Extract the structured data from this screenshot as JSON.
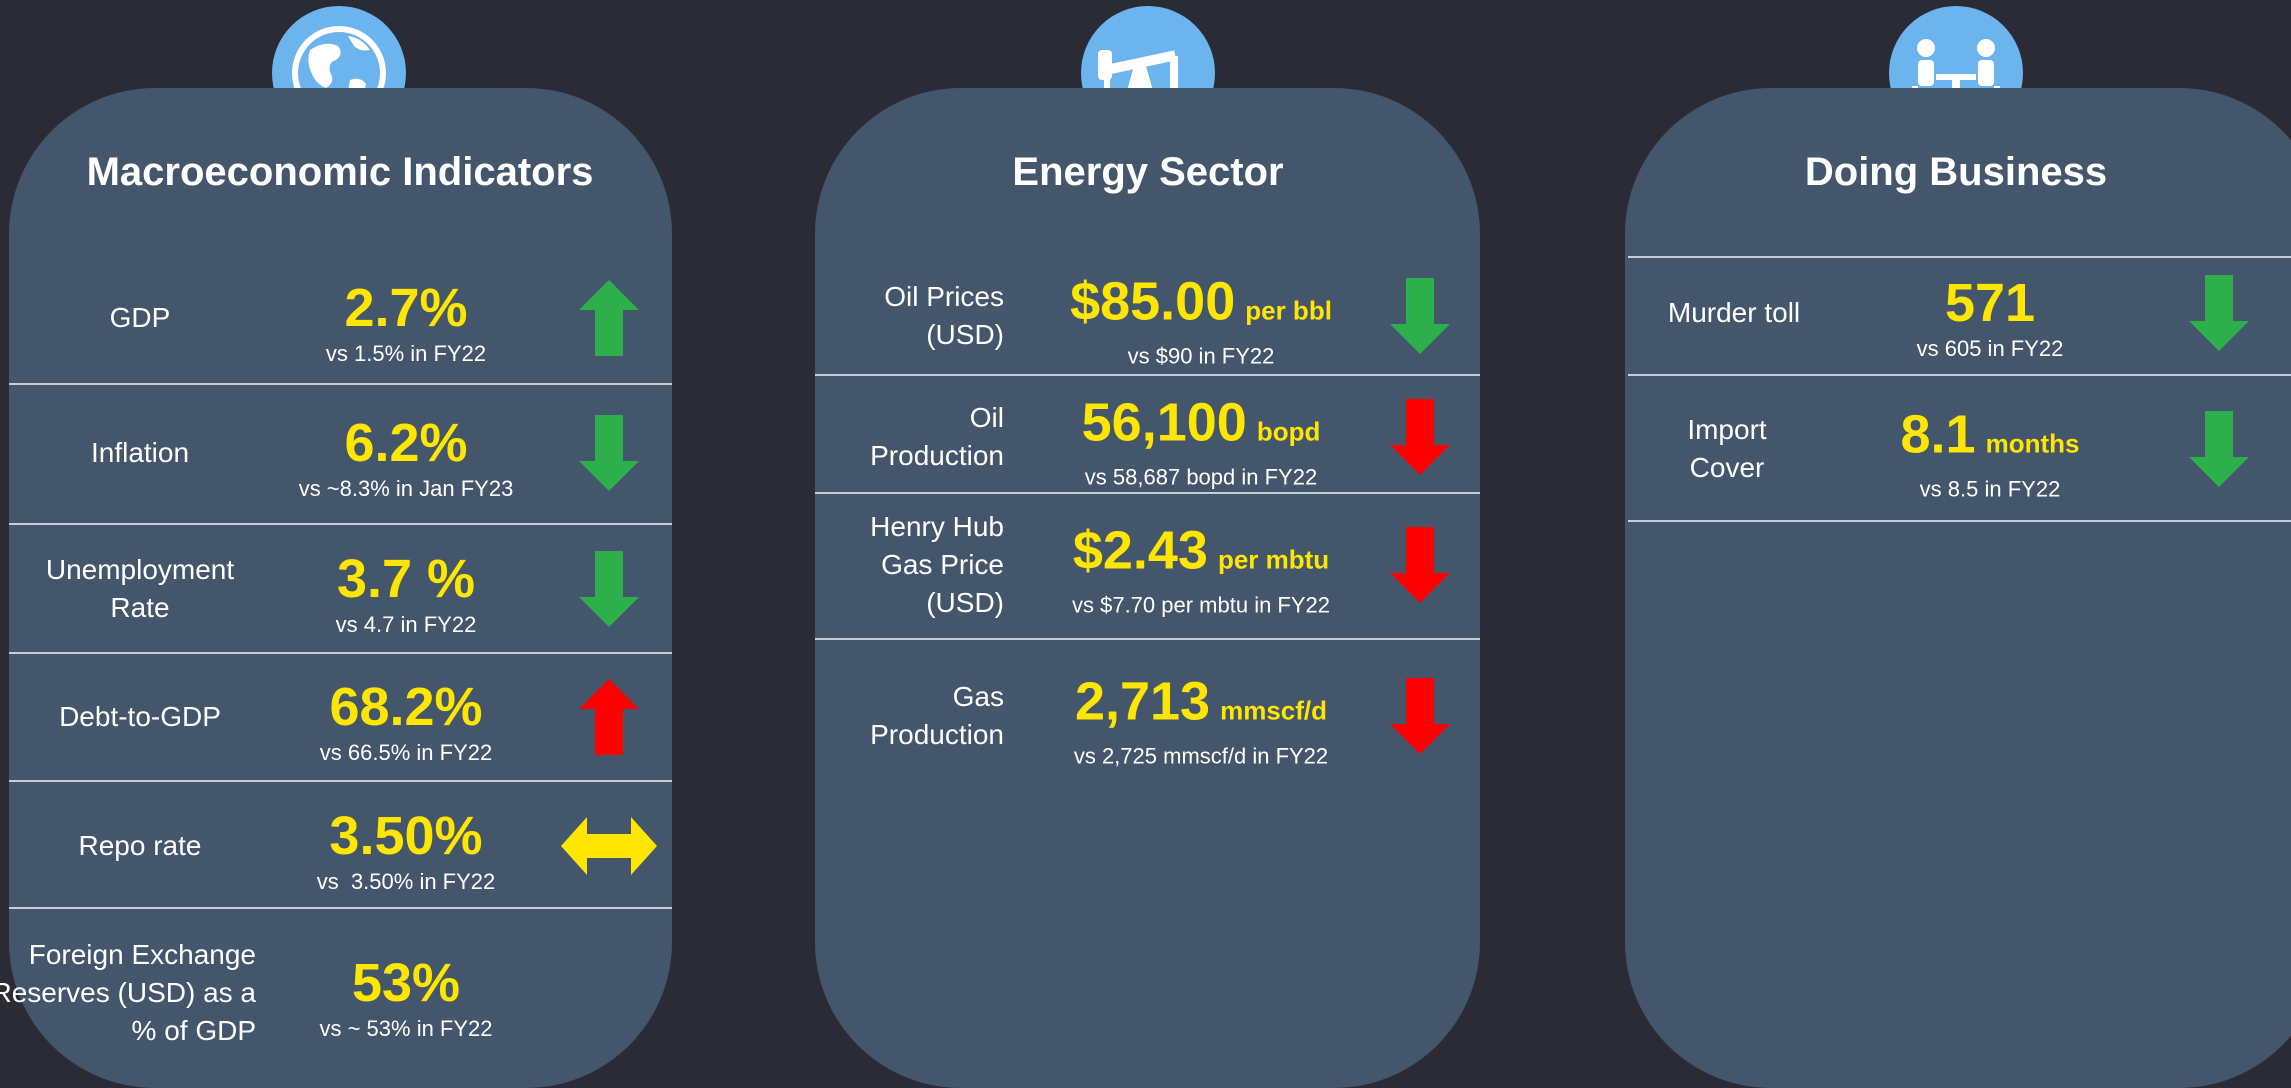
{
  "panels": [
    {
      "title": "Macroeconomic Indicators",
      "icon": "globe",
      "rows": [
        {
          "label": [
            "GDP"
          ],
          "value": "2.7%",
          "comparison": "vs 1.5% in FY22",
          "trend": "up",
          "color": "#2db04b"
        },
        {
          "label": [
            "Inflation"
          ],
          "value": "6.2%",
          "comparison": "vs ~8.3% in Jan FY23",
          "trend": "down",
          "color": "#2db04b"
        },
        {
          "label": [
            "Unemployment",
            "Rate"
          ],
          "value": "3.7 %",
          "comparison": "vs 4.7 in FY22",
          "trend": "down",
          "color": "#2db04b"
        },
        {
          "label": [
            "Debt-to-GDP"
          ],
          "value": "68.2%",
          "comparison": "vs 66.5% in FY22",
          "trend": "up",
          "color": "#ff0000"
        },
        {
          "label": [
            "Repo rate"
          ],
          "value": "3.50%",
          "comparison": "vs  3.50% in FY22",
          "trend": "both",
          "color": "#ffe600"
        },
        {
          "label": [
            "Foreign Exchange",
            "Reserves (USD) as a",
            "% of GDP"
          ],
          "value": "53%",
          "comparison": "vs ~ 53% in FY22"
        }
      ]
    },
    {
      "title": "Energy Sector",
      "icon": "pumpjack",
      "rows": [
        {
          "label": [
            "Oil Prices",
            "(USD)"
          ],
          "value": "$85.00",
          "unit": "per bbl",
          "comparison": "vs $90 in FY22",
          "trend": "down",
          "color": "#2db04b"
        },
        {
          "label": [
            "Oil",
            "Production"
          ],
          "value": "56,100",
          "unit": "bopd",
          "comparison": "vs 58,687 bopd in FY22",
          "trend": "down",
          "color": "#ff0000"
        },
        {
          "label": [
            "Henry Hub",
            "Gas Price",
            "(USD)"
          ],
          "value": "$2.43",
          "unit": "per mbtu",
          "comparison": "vs $7.70 per mbtu in FY22",
          "trend": "down",
          "color": "#ff0000"
        },
        {
          "label": [
            "Gas",
            "Production"
          ],
          "value": "2,713",
          "unit": "mmscf/d",
          "comparison": "vs 2,725 mmscf/d in FY22",
          "trend": "down",
          "color": "#ff0000"
        }
      ]
    },
    {
      "title": "Doing Business",
      "icon": "meeting",
      "rows": [
        {
          "label": [
            "Murder toll"
          ],
          "value": "571",
          "comparison": "vs 605 in FY22",
          "trend": "down",
          "color": "#2db04b"
        },
        {
          "label": [
            "Import",
            "Cover"
          ],
          "value": "8.1",
          "unit": "months",
          "comparison": "vs 8.5 in FY22",
          "trend": "down",
          "color": "#2db04b"
        }
      ]
    }
  ]
}
